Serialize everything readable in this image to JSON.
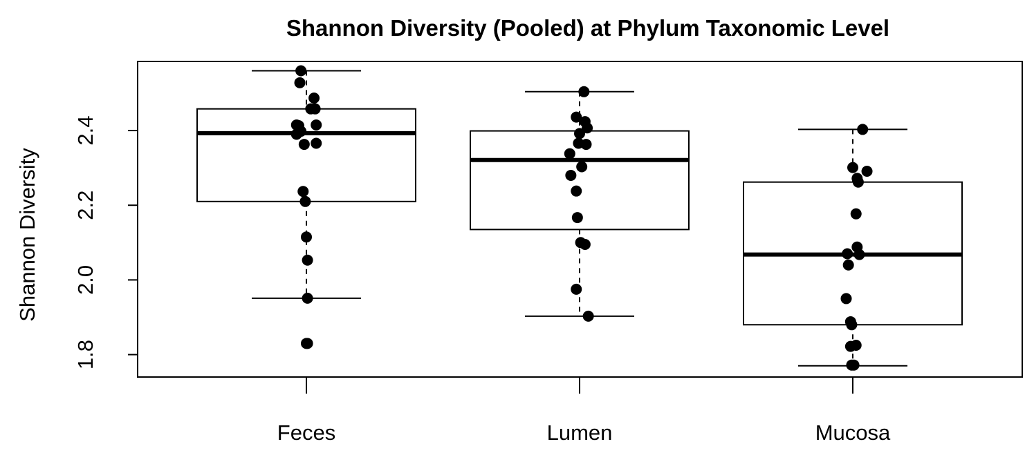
{
  "chart_data": {
    "type": "boxplot",
    "title": "Shannon Diversity (Pooled) at Phylum Taxonomic Level",
    "xlabel": "",
    "ylabel": "Shannon Diversity",
    "categories": [
      "Feces",
      "Lumen",
      "Mucosa"
    ],
    "y_ticks": [
      "1.8",
      "2.0",
      "2.2",
      "2.4"
    ],
    "ylim": [
      1.74,
      2.585
    ],
    "grid": false,
    "legend": "none",
    "boxes": [
      {
        "category": "Feces",
        "whisker_low": 1.951,
        "q1": 2.21,
        "median": 2.393,
        "q3": 2.458,
        "whisker_high": 2.56
      },
      {
        "category": "Lumen",
        "whisker_low": 1.903,
        "q1": 2.135,
        "median": 2.321,
        "q3": 2.399,
        "whisker_high": 2.504
      },
      {
        "category": "Mucosa",
        "whisker_low": 1.77,
        "q1": 1.88,
        "median": 2.068,
        "q3": 2.262,
        "whisker_high": 2.403
      }
    ],
    "points": [
      {
        "category": "Feces",
        "jitter": -0.05,
        "values": [
          2.56
        ]
      },
      {
        "category": "Feces",
        "jitter": -0.06,
        "values": [
          2.528
        ]
      },
      {
        "category": "Feces",
        "jitter": 0.07,
        "values": [
          2.487
        ]
      },
      {
        "category": "Feces",
        "jitter": 0.04,
        "values": [
          2.458
        ]
      },
      {
        "category": "Feces",
        "jitter": 0.08,
        "values": [
          2.458
        ]
      },
      {
        "category": "Feces",
        "jitter": -0.09,
        "values": [
          2.415
        ]
      },
      {
        "category": "Feces",
        "jitter": -0.07,
        "values": [
          2.413
        ]
      },
      {
        "category": "Feces",
        "jitter": 0.09,
        "values": [
          2.415
        ]
      },
      {
        "category": "Feces",
        "jitter": -0.05,
        "values": [
          2.398
        ]
      },
      {
        "category": "Feces",
        "jitter": -0.09,
        "values": [
          2.39
        ]
      },
      {
        "category": "Feces",
        "jitter": -0.02,
        "values": [
          2.363
        ]
      },
      {
        "category": "Feces",
        "jitter": 0.09,
        "values": [
          2.366
        ]
      },
      {
        "category": "Feces",
        "jitter": -0.03,
        "values": [
          2.237
        ]
      },
      {
        "category": "Feces",
        "jitter": -0.01,
        "values": [
          2.21
        ]
      },
      {
        "category": "Feces",
        "jitter": 0.0,
        "values": [
          2.115
        ]
      },
      {
        "category": "Feces",
        "jitter": 0.01,
        "values": [
          2.053
        ]
      },
      {
        "category": "Feces",
        "jitter": 0.01,
        "values": [
          1.951
        ]
      },
      {
        "category": "Feces",
        "jitter": 0.0,
        "values": [
          1.83
        ]
      },
      {
        "category": "Feces",
        "jitter": 0.01,
        "values": [
          1.83
        ]
      },
      {
        "category": "Lumen",
        "jitter": 0.04,
        "values": [
          2.504
        ]
      },
      {
        "category": "Lumen",
        "jitter": -0.03,
        "values": [
          2.436
        ]
      },
      {
        "category": "Lumen",
        "jitter": 0.05,
        "values": [
          2.424
        ]
      },
      {
        "category": "Lumen",
        "jitter": 0.07,
        "values": [
          2.407
        ]
      },
      {
        "category": "Lumen",
        "jitter": 0.0,
        "values": [
          2.392
        ]
      },
      {
        "category": "Lumen",
        "jitter": -0.01,
        "values": [
          2.366
        ]
      },
      {
        "category": "Lumen",
        "jitter": 0.06,
        "values": [
          2.363
        ]
      },
      {
        "category": "Lumen",
        "jitter": -0.09,
        "values": [
          2.338
        ]
      },
      {
        "category": "Lumen",
        "jitter": 0.02,
        "values": [
          2.303
        ]
      },
      {
        "category": "Lumen",
        "jitter": -0.08,
        "values": [
          2.28
        ]
      },
      {
        "category": "Lumen",
        "jitter": -0.03,
        "values": [
          2.238
        ]
      },
      {
        "category": "Lumen",
        "jitter": -0.02,
        "values": [
          2.167
        ]
      },
      {
        "category": "Lumen",
        "jitter": 0.01,
        "values": [
          2.1
        ]
      },
      {
        "category": "Lumen",
        "jitter": 0.05,
        "values": [
          2.095
        ]
      },
      {
        "category": "Lumen",
        "jitter": -0.03,
        "values": [
          1.975
        ]
      },
      {
        "category": "Lumen",
        "jitter": 0.08,
        "values": [
          1.903
        ]
      },
      {
        "category": "Mucosa",
        "jitter": 0.09,
        "values": [
          2.403
        ]
      },
      {
        "category": "Mucosa",
        "jitter": 0.0,
        "values": [
          2.301
        ]
      },
      {
        "category": "Mucosa",
        "jitter": 0.13,
        "values": [
          2.291
        ]
      },
      {
        "category": "Mucosa",
        "jitter": 0.04,
        "values": [
          2.272
        ]
      },
      {
        "category": "Mucosa",
        "jitter": 0.05,
        "values": [
          2.262
        ]
      },
      {
        "category": "Mucosa",
        "jitter": 0.03,
        "values": [
          2.177
        ]
      },
      {
        "category": "Mucosa",
        "jitter": 0.04,
        "values": [
          2.088
        ]
      },
      {
        "category": "Mucosa",
        "jitter": -0.05,
        "values": [
          2.07
        ]
      },
      {
        "category": "Mucosa",
        "jitter": 0.06,
        "values": [
          2.068
        ]
      },
      {
        "category": "Mucosa",
        "jitter": -0.04,
        "values": [
          2.04
        ]
      },
      {
        "category": "Mucosa",
        "jitter": -0.06,
        "values": [
          1.95
        ]
      },
      {
        "category": "Mucosa",
        "jitter": -0.02,
        "values": [
          1.888
        ]
      },
      {
        "category": "Mucosa",
        "jitter": -0.01,
        "values": [
          1.88
        ]
      },
      {
        "category": "Mucosa",
        "jitter": -0.02,
        "values": [
          1.822
        ]
      },
      {
        "category": "Mucosa",
        "jitter": 0.03,
        "values": [
          1.825
        ]
      },
      {
        "category": "Mucosa",
        "jitter": -0.01,
        "values": [
          1.772
        ]
      },
      {
        "category": "Mucosa",
        "jitter": 0.01,
        "values": [
          1.772
        ]
      }
    ]
  }
}
